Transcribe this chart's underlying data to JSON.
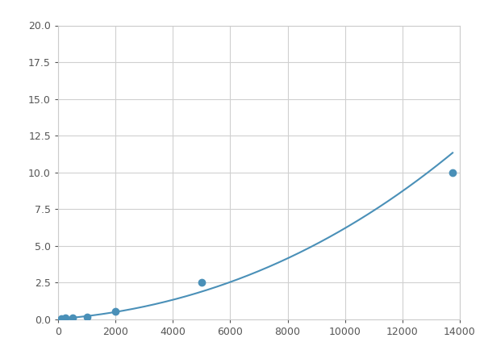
{
  "x": [
    125,
    250,
    500,
    1000,
    2000,
    5000,
    13750
  ],
  "y": [
    0.05,
    0.1,
    0.12,
    0.15,
    0.55,
    2.5,
    10.0
  ],
  "line_color": "#4a90b8",
  "marker_color": "#4a90b8",
  "marker_size": 6,
  "xlim": [
    0,
    14000
  ],
  "ylim": [
    0,
    20
  ],
  "xticks": [
    0,
    2000,
    4000,
    6000,
    8000,
    10000,
    12000,
    14000
  ],
  "yticks": [
    0.0,
    2.5,
    5.0,
    7.5,
    10.0,
    12.5,
    15.0,
    17.5,
    20.0
  ],
  "grid": true,
  "background_color": "#ffffff",
  "figure_width": 6.0,
  "figure_height": 4.5,
  "dpi": 100
}
